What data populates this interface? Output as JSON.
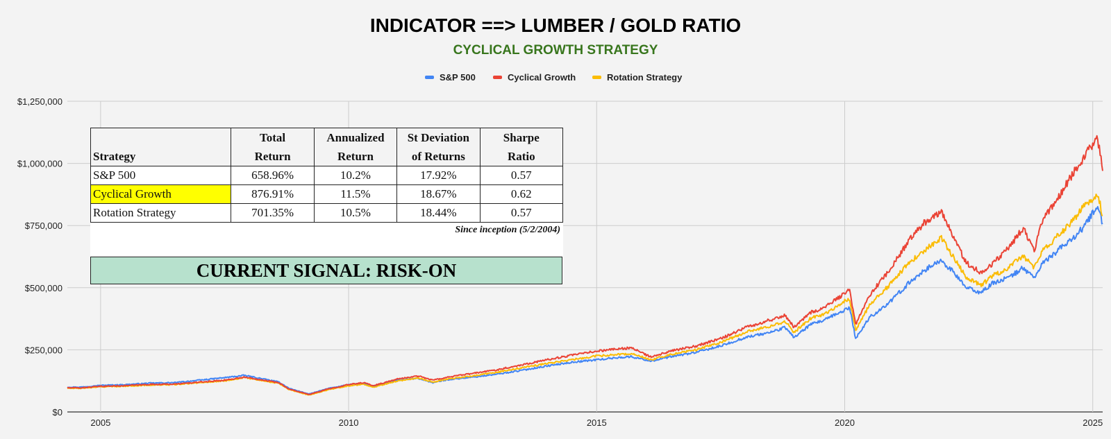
{
  "chart_data": {
    "type": "line",
    "title": "INDICATOR ==> LUMBER / GOLD RATIO",
    "subtitle": "CYCLICAL GROWTH STRATEGY",
    "xlabel": "",
    "ylabel": "",
    "legend_position": "top",
    "grid": true,
    "x_ticks": [
      "2005",
      "2010",
      "2015",
      "2020",
      "2025"
    ],
    "y_ticks": [
      "$0",
      "$250,000",
      "$500,000",
      "$750,000",
      "$1,000,000",
      "$1,250,000"
    ],
    "xlim": [
      2004.33,
      2025.2
    ],
    "ylim": [
      0,
      1250000
    ],
    "x": [
      2004.33,
      2004.6,
      2005.0,
      2005.5,
      2006.0,
      2006.5,
      2007.0,
      2007.5,
      2007.9,
      2008.3,
      2008.6,
      2008.8,
      2009.2,
      2009.6,
      2010.0,
      2010.3,
      2010.5,
      2011.0,
      2011.4,
      2011.7,
      2012.0,
      2012.5,
      2013.0,
      2013.5,
      2014.0,
      2014.5,
      2015.0,
      2015.5,
      2015.7,
      2016.1,
      2016.5,
      2017.0,
      2017.5,
      2018.0,
      2018.5,
      2018.8,
      2018.98,
      2019.3,
      2019.6,
      2019.95,
      2020.1,
      2020.22,
      2020.5,
      2020.9,
      2021.3,
      2021.6,
      2021.95,
      2022.2,
      2022.45,
      2022.75,
      2023.0,
      2023.3,
      2023.6,
      2023.82,
      2024.0,
      2024.3,
      2024.6,
      2024.8,
      2025.0,
      2025.1,
      2025.2
    ],
    "series": [
      {
        "name": "S&P 500",
        "color": "#4285f4",
        "values": [
          100000,
          100000,
          107000,
          110000,
          116000,
          118000,
          128000,
          138000,
          147000,
          132000,
          120000,
          95000,
          72000,
          95000,
          110000,
          115000,
          103000,
          128000,
          135000,
          118000,
          130000,
          140000,
          152000,
          168000,
          185000,
          200000,
          210000,
          220000,
          222000,
          205000,
          222000,
          240000,
          265000,
          300000,
          320000,
          340000,
          300000,
          350000,
          370000,
          405000,
          420000,
          295000,
          380000,
          440000,
          520000,
          570000,
          610000,
          560000,
          500000,
          480000,
          520000,
          540000,
          580000,
          540000,
          600000,
          650000,
          700000,
          740000,
          800000,
          820000,
          760000
        ]
      },
      {
        "name": "Cyclical Growth",
        "color": "#ea4335",
        "values": [
          97000,
          97000,
          103000,
          106000,
          111000,
          112000,
          120000,
          128000,
          140000,
          128000,
          117000,
          92000,
          70000,
          93000,
          110000,
          118000,
          106000,
          133000,
          145000,
          128000,
          140000,
          155000,
          170000,
          190000,
          210000,
          228000,
          245000,
          255000,
          258000,
          220000,
          245000,
          265000,
          295000,
          340000,
          370000,
          390000,
          340000,
          400000,
          420000,
          470000,
          490000,
          350000,
          470000,
          570000,
          690000,
          760000,
          810000,
          700000,
          600000,
          560000,
          600000,
          660000,
          740000,
          650000,
          780000,
          860000,
          960000,
          1020000,
          1080000,
          1100000,
          970000
        ]
      },
      {
        "name": "Rotation Strategy",
        "color": "#fbbc04",
        "values": [
          95000,
          95000,
          101000,
          104000,
          108000,
          110000,
          118000,
          125000,
          138000,
          125000,
          115000,
          90000,
          68000,
          90000,
          105000,
          112000,
          100000,
          125000,
          137000,
          120000,
          132000,
          145000,
          160000,
          178000,
          195000,
          210000,
          225000,
          232000,
          235000,
          210000,
          232000,
          250000,
          280000,
          320000,
          345000,
          365000,
          320000,
          375000,
          395000,
          440000,
          455000,
          330000,
          430000,
          510000,
          600000,
          650000,
          700000,
          620000,
          540000,
          510000,
          550000,
          580000,
          630000,
          580000,
          650000,
          710000,
          770000,
          820000,
          860000,
          880000,
          790000
        ]
      }
    ]
  },
  "stats_table": {
    "headers": [
      [
        "",
        "Strategy"
      ],
      [
        "Total",
        "Return"
      ],
      [
        "Annualized",
        "Return"
      ],
      [
        "St Deviation",
        "of Returns"
      ],
      [
        "Sharpe",
        "Ratio"
      ]
    ],
    "rows": [
      [
        "S&P 500",
        "658.96%",
        "10.2%",
        "17.92%",
        "0.57"
      ],
      [
        "Cyclical Growth",
        "876.91%",
        "11.5%",
        "18.67%",
        "0.62"
      ],
      [
        "Rotation Strategy",
        "701.35%",
        "10.5%",
        "18.44%",
        "0.57"
      ]
    ],
    "highlight_color": "#ffff00",
    "note": "Since inception (5/2/2004)"
  },
  "signal": {
    "text": "CURRENT SIGNAL: RISK-ON",
    "color": "#b7e1cd"
  },
  "colors": {
    "title": "#000000",
    "subtitle": "#38761d",
    "background": "#f3f3f3",
    "grid": "#cccccc"
  }
}
